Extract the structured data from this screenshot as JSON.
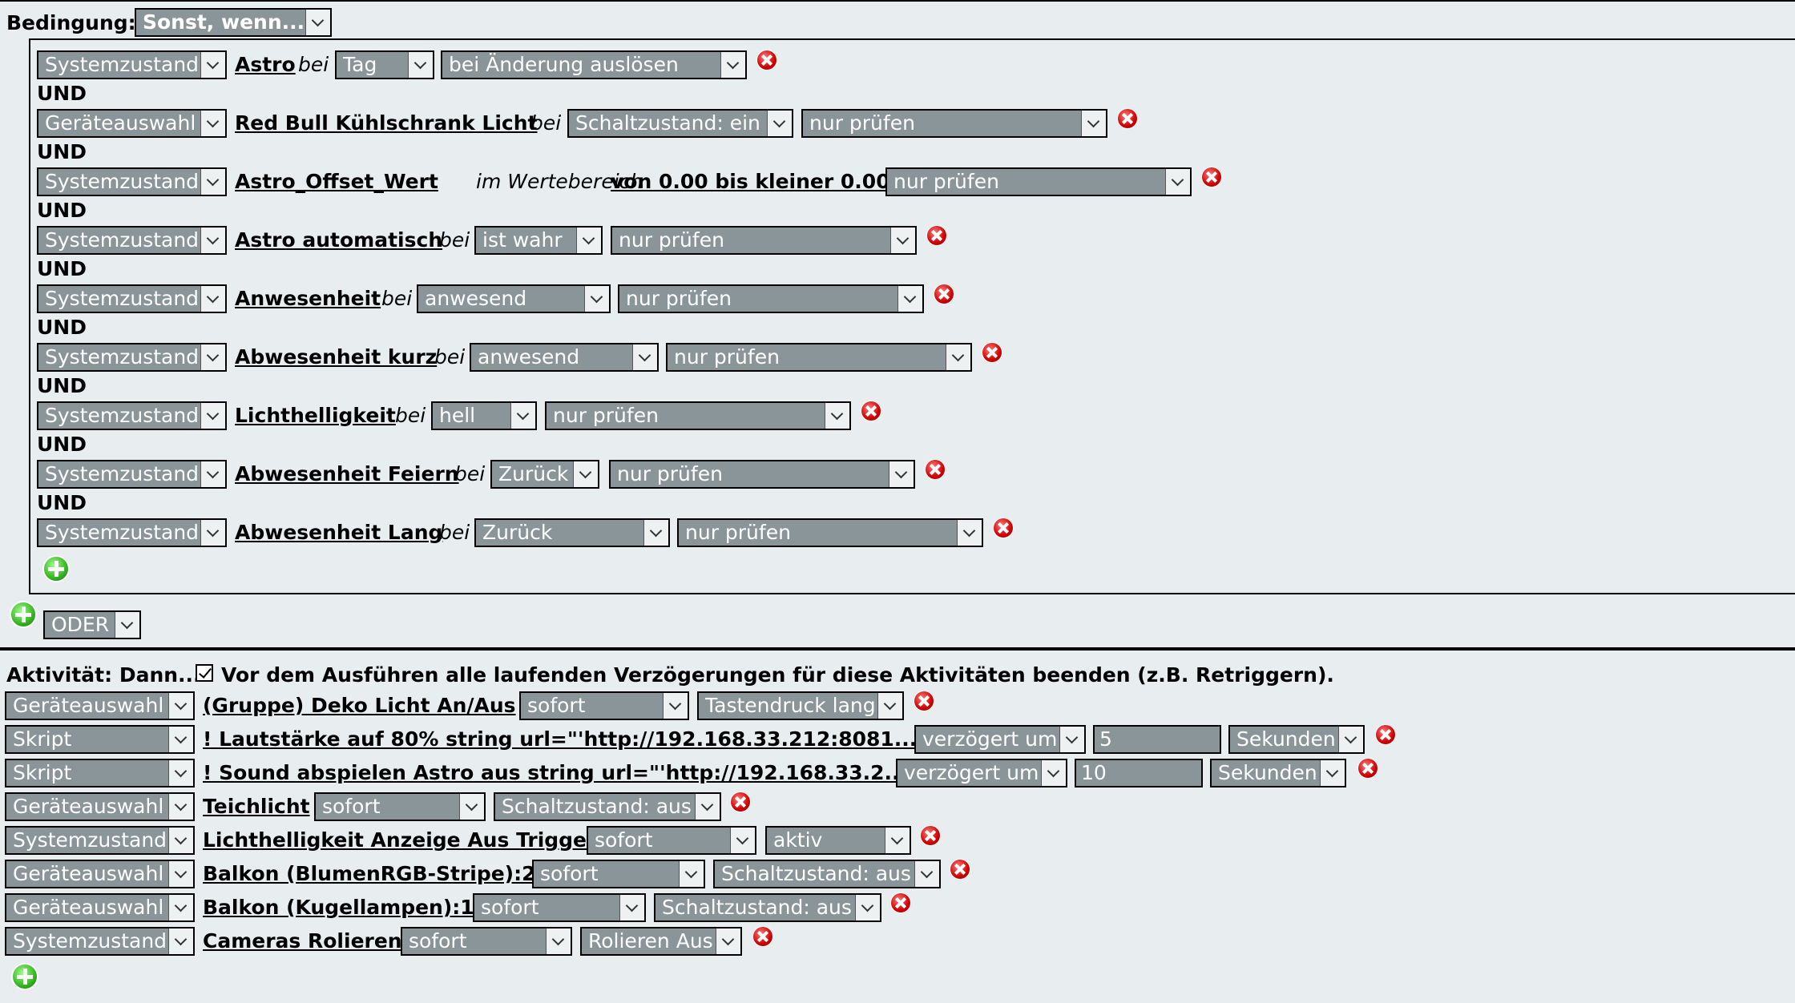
{
  "condition": {
    "label": "Bedingung:",
    "mode": "Sonst, wenn...",
    "and_label": "UND",
    "or_label": "ODER",
    "rows": [
      {
        "type": "Systemzustand",
        "name": "Astro",
        "word": "bei",
        "value": "Tag",
        "trigger": "bei Änderung auslösen"
      },
      {
        "type": "Geräteauswahl",
        "name": "Red Bull Kühlschrank Licht",
        "word": "bei",
        "value": "Schaltzustand: ein",
        "trigger": "nur prüfen"
      },
      {
        "type": "Systemzustand",
        "name": "Astro_Offset_Wert",
        "word": "im Wertebereich",
        "range": "von 0.00 bis kleiner 0.00",
        "trigger": "nur prüfen"
      },
      {
        "type": "Systemzustand",
        "name": "Astro automatisch",
        "word": "bei",
        "value": "ist wahr",
        "trigger": "nur prüfen"
      },
      {
        "type": "Systemzustand",
        "name": "Anwesenheit",
        "word": "bei",
        "value": "anwesend",
        "trigger": "nur prüfen"
      },
      {
        "type": "Systemzustand",
        "name": "Abwesenheit kurz",
        "word": "bei",
        "value": "anwesend",
        "trigger": "nur prüfen"
      },
      {
        "type": "Systemzustand",
        "name": "Lichthelligkeit",
        "word": "bei",
        "value": "hell",
        "trigger": "nur prüfen"
      },
      {
        "type": "Systemzustand",
        "name": "Abwesenheit Feiern",
        "word": "bei",
        "value": "Zurück",
        "trigger": "nur prüfen"
      },
      {
        "type": "Systemzustand",
        "name": "Abwesenheit Lang",
        "word": "bei",
        "value": "Zurück",
        "trigger": "nur prüfen"
      }
    ]
  },
  "activity": {
    "label": "Aktivität: Dann...",
    "retrigger_checked": true,
    "retrigger_label": "Vor dem Ausführen alle laufenden Verzögerungen für diese Aktivitäten beenden (z.B. Retriggern).",
    "rows": [
      {
        "type": "Geräteauswahl",
        "name": "(Gruppe) Deko Licht An/Aus",
        "timing": "sofort",
        "action": "Tastendruck lang"
      },
      {
        "type": "Skript",
        "name": "! Lautstärke auf 80% string url=\"'http://192.168.33.212:8081...",
        "timing": "verzögert um",
        "delay": "5",
        "unit": "Sekunden"
      },
      {
        "type": "Skript",
        "name": "! Sound abspielen Astro aus string url=\"'http://192.168.33.2...",
        "timing": "verzögert um",
        "delay": "10",
        "unit": "Sekunden"
      },
      {
        "type": "Geräteauswahl",
        "name": "Teichlicht",
        "timing": "sofort",
        "action": "Schaltzustand: aus"
      },
      {
        "type": "Systemzustand",
        "name": "Lichthelligkeit Anzeige Aus Trigger",
        "timing": "sofort",
        "action": "aktiv"
      },
      {
        "type": "Geräteauswahl",
        "name": "Balkon (BlumenRGB-Stripe):2",
        "timing": "sofort",
        "action": "Schaltzustand: aus"
      },
      {
        "type": "Geräteauswahl",
        "name": "Balkon (Kugellampen):1",
        "timing": "sofort",
        "action": "Schaltzustand: aus"
      },
      {
        "type": "Systemzustand",
        "name": "Cameras Rolieren",
        "timing": "sofort",
        "action": "Rolieren Aus"
      }
    ]
  }
}
